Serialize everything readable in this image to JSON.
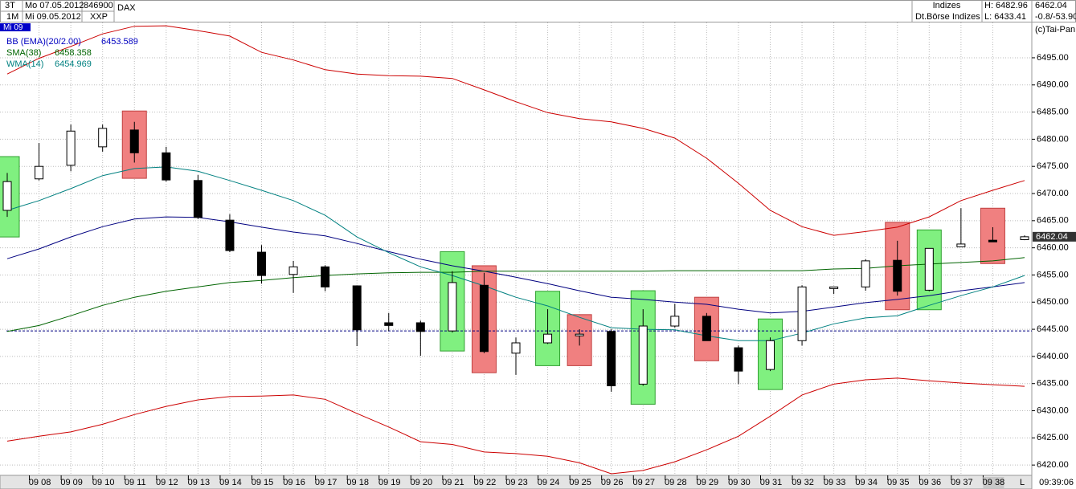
{
  "header": {
    "period": "3T",
    "from": "Mo 07.05.2012",
    "volume": "846900",
    "symbol": "DAX",
    "range": "1M",
    "to": "Mi 09.05.2012",
    "exchange": "XXP",
    "group": "Indizes",
    "source": "Dt.Börse Indizes",
    "high": "H: 6482.96",
    "low": "L: 6433.41",
    "change": "-0.8/-53.90",
    "copyright": "(c)Tai-Pan",
    "day": "Mi 09",
    "time": "09:39:06",
    "mode": "L"
  },
  "chart_data": {
    "type": "candlestick",
    "categories": [
      null,
      "09 08",
      "09 09",
      "09 10",
      "09 11",
      "09 12",
      "09 13",
      "09 14",
      "09 15",
      "09 16",
      "09 17",
      "09 18",
      "09 19",
      "09 20",
      "09 21",
      "09 22",
      "09 23",
      "09 24",
      "09 25",
      "09 26",
      "09 27",
      "09 28",
      "09 29",
      "09 30",
      "09 31",
      "09 32",
      "09 33",
      "09 34",
      "09 35",
      "09 36",
      "09 37",
      "09 38",
      null
    ],
    "open": [
      6466.9,
      6472.7,
      6475.2,
      6478.6,
      6481.7,
      6477.5,
      6472.4,
      6465.1,
      6459.2,
      6455.1,
      6456.5,
      6453.0,
      6446.2,
      6446.2,
      6444.7,
      6453.1,
      6440.6,
      6442.5,
      6443.8,
      6444.6,
      6434.9,
      6445.6,
      6447.4,
      6441.6,
      6437.6,
      6442.9,
      6452.5,
      6452.8,
      6457.7,
      6452.2,
      6460.2,
      6461.4,
      6461.5
    ],
    "high": [
      6473.8,
      6479.3,
      6482.7,
      6482.7,
      6483.2,
      6478.6,
      6473.4,
      6466.2,
      6460.5,
      6457.6,
      6456.8,
      6453.0,
      6448.0,
      6446.6,
      6455.7,
      6455.4,
      6443.5,
      6448.7,
      6445.0,
      6445.0,
      6448.7,
      6449.7,
      6448.0,
      6442.0,
      6443.5,
      6453.1,
      6452.8,
      6457.9,
      6461.3,
      6459.9,
      6467.3,
      6463.8,
      6462.3
    ],
    "low": [
      6465.7,
      6472.4,
      6474.1,
      6477.7,
      6475.7,
      6472.2,
      6465.3,
      6459.2,
      6453.4,
      6451.7,
      6452.0,
      6441.9,
      6444.7,
      6440.1,
      6444.4,
      6440.6,
      6436.6,
      6442.3,
      6442.0,
      6433.5,
      6434.6,
      6445.3,
      6442.9,
      6434.9,
      6437.3,
      6442.0,
      6451.5,
      6452.1,
      6451.2,
      6452.0,
      6460.2,
      6461.1,
      6461.4
    ],
    "close": [
      6472.2,
      6475.0,
      6481.5,
      6482.0,
      6477.5,
      6472.5,
      6465.6,
      6459.5,
      6454.9,
      6456.5,
      6452.8,
      6444.9,
      6445.7,
      6444.6,
      6453.6,
      6440.9,
      6442.5,
      6444.1,
      6444.1,
      6434.6,
      6445.6,
      6447.4,
      6442.9,
      6437.3,
      6442.9,
      6452.8,
      6452.8,
      6457.6,
      6452.0,
      6459.9,
      6460.7,
      6461.1,
      6462.04
    ],
    "highlight_color": [
      "#80f080",
      null,
      null,
      null,
      "#f08080",
      null,
      null,
      null,
      null,
      null,
      null,
      null,
      null,
      null,
      "#80f080",
      "#f08080",
      null,
      "#80f080",
      "#f08080",
      null,
      "#80f080",
      null,
      "#f08080",
      null,
      "#80f080",
      null,
      null,
      null,
      "#f08080",
      "#80f080",
      null,
      "#f08080",
      null
    ],
    "highlight_high": [
      6476.8,
      null,
      null,
      null,
      6485.2,
      null,
      null,
      null,
      null,
      null,
      null,
      null,
      null,
      null,
      6459.3,
      6456.7,
      null,
      6452.0,
      6447.7,
      null,
      6452.1,
      null,
      6450.9,
      null,
      6446.9,
      null,
      null,
      null,
      6464.7,
      6463.3,
      null,
      6467.3,
      null
    ],
    "highlight_low": [
      6462.0,
      null,
      null,
      null,
      6472.8,
      null,
      null,
      null,
      null,
      null,
      null,
      null,
      null,
      null,
      6441.0,
      6437.0,
      null,
      6438.3,
      6438.3,
      null,
      6431.2,
      null,
      6439.2,
      null,
      6433.9,
      null,
      null,
      null,
      6448.6,
      6448.6,
      null,
      6457.1,
      null
    ],
    "series": [
      {
        "color": "#cc0000",
        "values": [
          6492.0,
          6494.9,
          6497.1,
          6499.4,
          6500.8,
          6500.9,
          6500.0,
          6499.0,
          6496.0,
          6494.6,
          6492.8,
          6492.0,
          6491.7,
          6491.6,
          6491.2,
          6489.1,
          6486.9,
          6484.9,
          6483.8,
          6483.2,
          6482.0,
          6480.2,
          6476.5,
          6471.9,
          6466.9,
          6463.9,
          6462.3,
          6463.0,
          6463.8,
          6465.7,
          6468.7,
          6470.6,
          6472.4
        ]
      },
      {
        "color": "#000080",
        "values": [
          6458.0,
          6459.8,
          6462.0,
          6463.9,
          6465.3,
          6465.7,
          6465.6,
          6464.8,
          6463.8,
          6462.9,
          6462.2,
          6460.8,
          6459.3,
          6457.9,
          6456.7,
          6455.7,
          6454.6,
          6453.4,
          6452.1,
          6450.9,
          6450.5,
          6450.0,
          6449.6,
          6448.7,
          6448.0,
          6448.3,
          6449.1,
          6449.9,
          6450.5,
          6451.2,
          6452.1,
          6452.8,
          6453.6
        ]
      },
      {
        "color": "#cc0000",
        "values": [
          6424.4,
          6425.3,
          6426.1,
          6427.5,
          6429.3,
          6430.8,
          6432.0,
          6432.6,
          6432.7,
          6432.9,
          6432.1,
          6429.5,
          6427.0,
          6424.3,
          6423.8,
          6422.4,
          6422.1,
          6421.6,
          6420.4,
          6418.4,
          6419.0,
          6420.6,
          6422.8,
          6425.3,
          6429.0,
          6432.9,
          6434.9,
          6435.7,
          6436.0,
          6435.5,
          6435.1,
          6434.8,
          6434.5
        ]
      },
      {
        "color": "#006400",
        "values": [
          6444.6,
          6445.7,
          6447.5,
          6449.4,
          6450.9,
          6452.0,
          6452.8,
          6453.6,
          6454.0,
          6454.5,
          6454.9,
          6455.2,
          6455.4,
          6455.5,
          6455.5,
          6455.7,
          6455.7,
          6455.7,
          6455.7,
          6455.7,
          6455.7,
          6455.8,
          6455.8,
          6455.8,
          6455.8,
          6455.8,
          6456.1,
          6456.2,
          6456.7,
          6457.0,
          6457.3,
          6457.6,
          6458.2
        ]
      },
      {
        "color": "#008080",
        "values": [
          6466.9,
          6468.7,
          6470.9,
          6473.3,
          6474.6,
          6474.9,
          6474.1,
          6472.4,
          6470.6,
          6468.7,
          6466.0,
          6462.0,
          6459.1,
          6456.5,
          6454.9,
          6453.0,
          6450.9,
          6449.3,
          6447.2,
          6445.3,
          6445.0,
          6444.9,
          6443.8,
          6442.9,
          6442.9,
          6444.3,
          6446.0,
          6447.1,
          6447.5,
          6449.4,
          6451.2,
          6452.8,
          6454.9
        ]
      }
    ],
    "legend": [
      {
        "name": "BB (EMA)(20/2.00)",
        "value": 6453.589,
        "color": "#0000c0"
      },
      {
        "name": "SMA(38)",
        "value": 6458.358,
        "color": "#006400"
      },
      {
        "name": "WMA(14)",
        "value": 6454.969,
        "color": "#008080"
      }
    ],
    "reference_line": 6444.7,
    "ylim": [
      6418.1,
      6501.5
    ],
    "yticks": [
      {
        "value": 6420,
        "label": "6420.00"
      },
      {
        "value": 6425,
        "label": "6425.00"
      },
      {
        "value": 6430,
        "label": "6430.00"
      },
      {
        "value": 6435,
        "label": "6435.00"
      },
      {
        "value": 6440,
        "label": "6440.00"
      },
      {
        "value": 6445,
        "label": "6445.00"
      },
      {
        "value": 6450,
        "label": "6450.00"
      },
      {
        "value": 6455,
        "label": "6455.00"
      },
      {
        "value": 6460,
        "label": "6460.00"
      },
      {
        "value": 6465,
        "label": "6465.00"
      },
      {
        "value": 6470,
        "label": "6470.00"
      },
      {
        "value": 6475,
        "label": "6475.00"
      },
      {
        "value": 6480,
        "label": "6480.00"
      },
      {
        "value": 6485,
        "label": "6485.00"
      },
      {
        "value": 6490,
        "label": "6490.00"
      },
      {
        "value": 6495,
        "label": "6495.00"
      }
    ],
    "grid": true
  }
}
